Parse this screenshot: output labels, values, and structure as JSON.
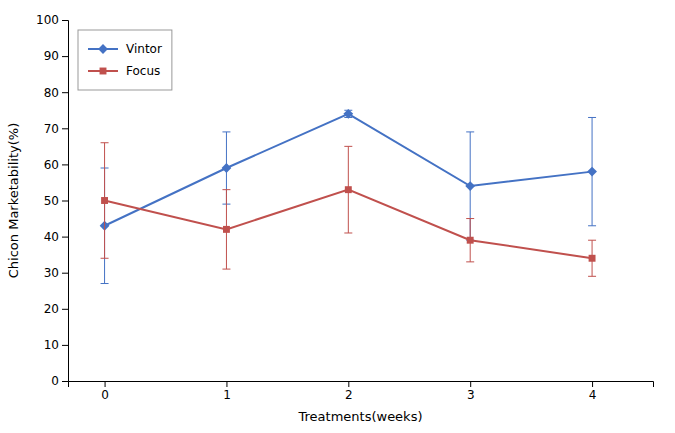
{
  "chart_data": {
    "type": "line",
    "x": [
      0,
      1,
      2,
      3,
      4
    ],
    "xlabel": "Treatments(weeks)",
    "ylabel": "Chicon Marketability(%)",
    "series": [
      {
        "name": "Vintor",
        "color": "#4472c4",
        "marker": "diamond",
        "values": [
          43,
          59,
          74,
          54,
          58
        ],
        "errors": [
          16,
          10,
          1,
          15,
          15
        ]
      },
      {
        "name": "Focus",
        "color": "#c0504d",
        "marker": "square",
        "values": [
          50,
          42,
          53,
          39,
          34
        ],
        "errors": [
          16,
          11,
          12,
          6,
          5
        ]
      }
    ],
    "xlim": [
      -0.3,
      4.5
    ],
    "ylim": [
      0,
      100
    ],
    "xticks": [
      0,
      1,
      2,
      3,
      4
    ],
    "yticks": [
      0,
      10,
      20,
      30,
      40,
      50,
      60,
      70,
      80,
      90,
      100
    ],
    "legend": "upper left",
    "grid": false
  }
}
